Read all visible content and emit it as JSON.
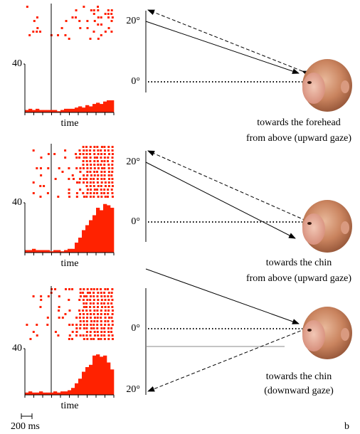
{
  "panels": [
    {
      "histogram": {
        "ylim": [
          0,
          40
        ],
        "yticks": [
          40
        ],
        "x_label": "time",
        "values": [
          2,
          3,
          2,
          3,
          2,
          2,
          2,
          2,
          2,
          1,
          2,
          3,
          3,
          3,
          4,
          5,
          4,
          6,
          5,
          7,
          8,
          7,
          9,
          10,
          10
        ]
      },
      "angle_labels": [
        "20°",
        "0°"
      ],
      "caption": [
        "towards the forehead",
        "from above (upward gaze)"
      ]
    },
    {
      "histogram": {
        "ylim": [
          0,
          40
        ],
        "yticks": [
          40
        ],
        "x_label": "time",
        "values": [
          2,
          2,
          3,
          2,
          2,
          2,
          2,
          1,
          2,
          2,
          1,
          2,
          3,
          3,
          8,
          12,
          18,
          22,
          26,
          30,
          36,
          34,
          39,
          38,
          36
        ]
      },
      "angle_labels": [
        "20°",
        "0°"
      ],
      "caption": [
        "towards the chin",
        "from above (upward gaze)"
      ]
    },
    {
      "histogram": {
        "ylim": [
          0,
          40
        ],
        "yticks": [
          40
        ],
        "x_label": "time",
        "values": [
          2,
          3,
          2,
          2,
          3,
          2,
          2,
          2,
          3,
          2,
          3,
          3,
          4,
          6,
          10,
          14,
          20,
          24,
          26,
          34,
          35,
          33,
          34,
          28,
          22
        ]
      },
      "angle_labels": [
        "0°",
        "20°"
      ],
      "caption": [
        "towards the chin",
        "(downward gaze)"
      ]
    }
  ],
  "scale_bar": "200 ms",
  "panel_label": "b"
}
